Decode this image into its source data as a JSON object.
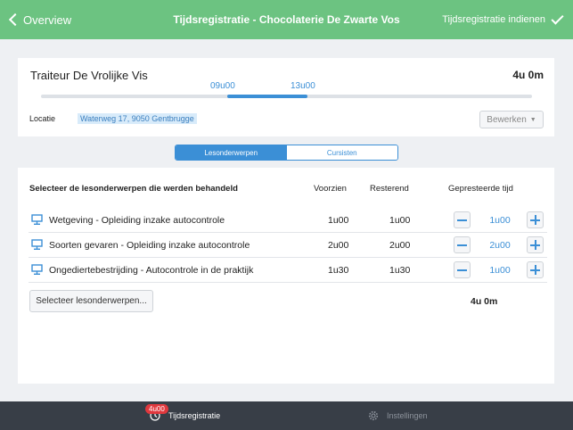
{
  "nav": {
    "back_label": "Overview",
    "title": "Tijdsregistratie - Chocolaterie De Zwarte Vos",
    "submit_label": "Tijdsregistratie indienen"
  },
  "session": {
    "client": "Traiteur De Vrolijke Vis",
    "total": "4u 0m",
    "start": "09u00",
    "end": "13u00",
    "range_fraction": {
      "start": 0.379,
      "end": 0.542
    },
    "location_label": "Locatie",
    "location_value": "Waterweg 17, 9050 Gentbrugge",
    "edit_label": "Bewerken"
  },
  "tabs": [
    {
      "label": "Lesonderwerpen",
      "active": true
    },
    {
      "label": "Cursisten",
      "active": false
    }
  ],
  "table": {
    "headers": {
      "title": "Selecteer de lesonderwerpen die werden behandeld",
      "planned": "Voorzien",
      "remaining": "Resterend",
      "registered": "Gepresteerde tijd"
    },
    "rows": [
      {
        "name": "Wetgeving - Opleiding inzake autocontrole",
        "planned": "1u00",
        "remaining": "1u00",
        "registered": "1u00"
      },
      {
        "name": "Soorten gevaren - Opleiding inzake autocontrole",
        "planned": "2u00",
        "remaining": "2u00",
        "registered": "2u00"
      },
      {
        "name": "Ongediertebestrijding - Autocontrole in de praktijk",
        "planned": "1u30",
        "remaining": "1u30",
        "registered": "1u00"
      }
    ],
    "select_label": "Selecteer lesonderwerpen...",
    "sum": "4u 0m"
  },
  "tabbar": {
    "registration_label": "Tijdsregistratie",
    "registration_badge": "4u00",
    "settings_label": "Instellingen"
  },
  "colors": {
    "navbar": "#6cc381",
    "accent": "#3b8fd6",
    "tabbar": "#383e47",
    "badge": "#e0383e"
  },
  "icons": {
    "back": "chevron-left-icon",
    "submit": "checkmark-icon",
    "topic": "presentation-board-icon",
    "registration_tab": "clock-icon",
    "settings_tab": "gear-icon"
  }
}
